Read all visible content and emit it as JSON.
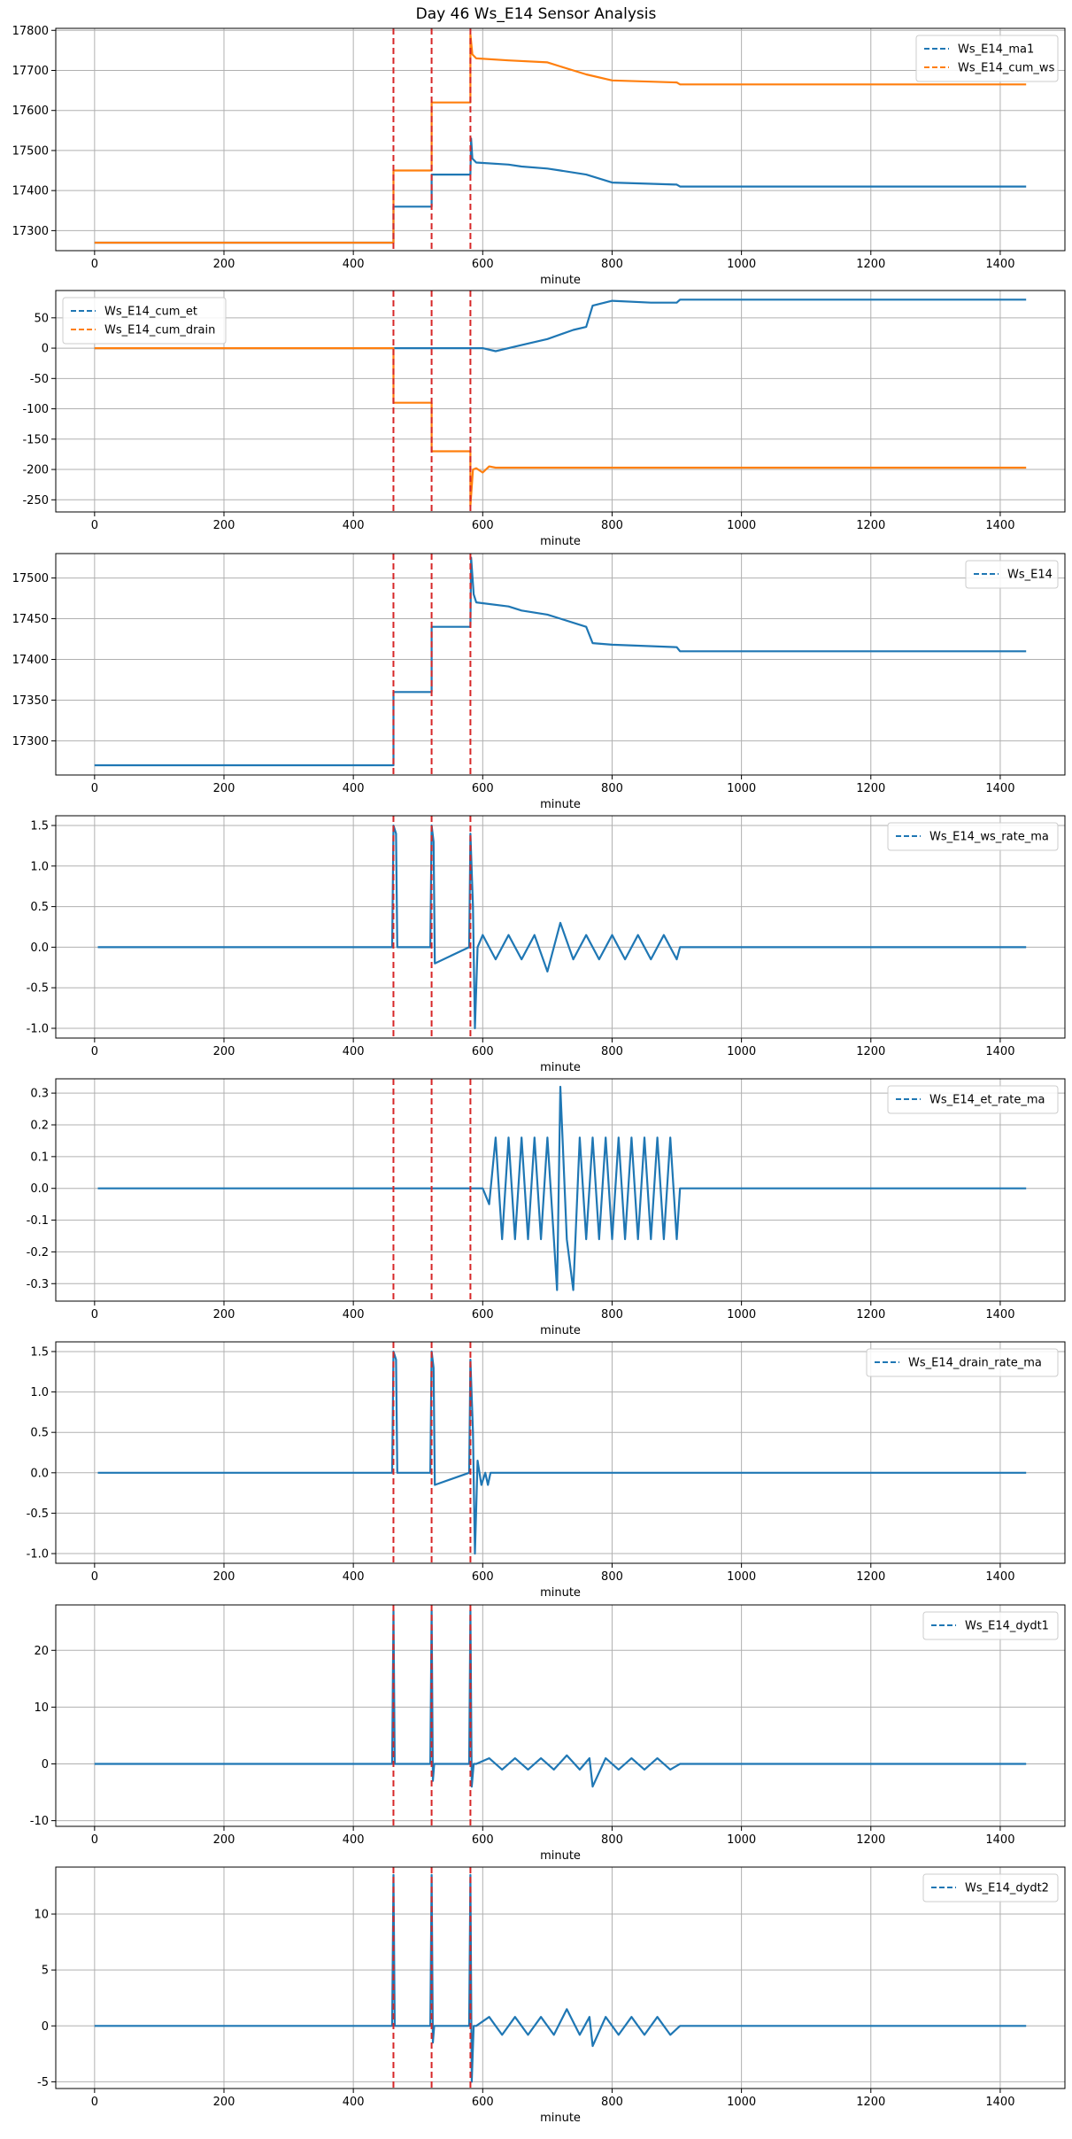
{
  "figure": {
    "title": "Day 46 Ws_E14 Sensor Analysis"
  },
  "colors": {
    "blue": "#1f77b4",
    "orange": "#ff7f0e",
    "event": "#d62728",
    "grid": "#b0b0b0"
  },
  "events": [
    462,
    521,
    581
  ],
  "chart_data": [
    {
      "type": "line",
      "xlabel": "minute",
      "xlim": [
        -60,
        1500
      ],
      "ylim": [
        17250,
        17805
      ],
      "xticks": [
        0,
        200,
        400,
        600,
        800,
        1000,
        1200,
        1400
      ],
      "yticks": [
        17300,
        17400,
        17500,
        17600,
        17700,
        17800
      ],
      "legend": "top-right",
      "grid": true,
      "series": [
        {
          "name": "Ws_E14_ma1",
          "color": "blue",
          "x": [
            0,
            462,
            462,
            521,
            521,
            581,
            582,
            584,
            590,
            640,
            660,
            700,
            720,
            760,
            800,
            900,
            905,
            1440
          ],
          "y": [
            17270,
            17270,
            17360,
            17360,
            17440,
            17440,
            17530,
            17480,
            17470,
            17465,
            17460,
            17455,
            17450,
            17440,
            17420,
            17415,
            17410,
            17410
          ]
        },
        {
          "name": "Ws_E14_cum_ws",
          "color": "orange",
          "x": [
            0,
            462,
            462,
            521,
            521,
            581,
            581,
            584,
            590,
            640,
            700,
            720,
            760,
            800,
            900,
            905,
            1440
          ],
          "y": [
            17270,
            17270,
            17450,
            17450,
            17620,
            17620,
            17790,
            17740,
            17730,
            17725,
            17720,
            17710,
            17690,
            17675,
            17670,
            17665,
            17665
          ]
        }
      ]
    },
    {
      "type": "line",
      "xlabel": "minute",
      "xlim": [
        -60,
        1500
      ],
      "ylim": [
        -270,
        95
      ],
      "xticks": [
        0,
        200,
        400,
        600,
        800,
        1000,
        1200,
        1400
      ],
      "yticks": [
        -250,
        -200,
        -150,
        -100,
        -50,
        0,
        50
      ],
      "legend": "top-left",
      "grid": true,
      "series": [
        {
          "name": "Ws_E14_cum_et",
          "color": "blue",
          "x": [
            0,
            600,
            620,
            660,
            700,
            740,
            760,
            770,
            800,
            860,
            900,
            905,
            1440
          ],
          "y": [
            0,
            0,
            -5,
            5,
            15,
            30,
            35,
            70,
            78,
            75,
            75,
            80,
            80
          ]
        },
        {
          "name": "Ws_E14_cum_drain",
          "color": "orange",
          "x": [
            0,
            462,
            462,
            521,
            521,
            581,
            581,
            585,
            590,
            600,
            610,
            620,
            1440
          ],
          "y": [
            0,
            0,
            -90,
            -90,
            -170,
            -170,
            -260,
            -200,
            -198,
            -205,
            -195,
            -197,
            -197
          ]
        }
      ]
    },
    {
      "type": "line",
      "xlabel": "minute",
      "xlim": [
        -60,
        1500
      ],
      "ylim": [
        17258,
        17530
      ],
      "xticks": [
        0,
        200,
        400,
        600,
        800,
        1000,
        1200,
        1400
      ],
      "yticks": [
        17300,
        17350,
        17400,
        17450,
        17500
      ],
      "legend": "top-right",
      "grid": true,
      "series": [
        {
          "name": "Ws_E14",
          "color": "blue",
          "x": [
            0,
            462,
            462,
            521,
            521,
            581,
            582,
            586,
            590,
            640,
            660,
            700,
            720,
            760,
            770,
            800,
            900,
            905,
            1440
          ],
          "y": [
            17270,
            17270,
            17360,
            17360,
            17440,
            17440,
            17525,
            17480,
            17470,
            17465,
            17460,
            17455,
            17450,
            17440,
            17420,
            17418,
            17415,
            17410,
            17410
          ]
        }
      ]
    },
    {
      "type": "line",
      "xlabel": "minute",
      "xlim": [
        -60,
        1500
      ],
      "ylim": [
        -1.12,
        1.62
      ],
      "xticks": [
        0,
        200,
        400,
        600,
        800,
        1000,
        1200,
        1400
      ],
      "yticks": [
        -1.0,
        -0.5,
        0.0,
        0.5,
        1.0,
        1.5
      ],
      "legend": "top-right",
      "grid": true,
      "series": [
        {
          "name": "Ws_E14_ws_rate_ma",
          "color": "blue",
          "x": [
            5,
            460,
            462,
            466,
            468,
            519,
            521,
            524,
            526,
            579,
            581,
            585,
            588,
            592,
            600,
            620,
            640,
            660,
            680,
            700,
            720,
            740,
            760,
            780,
            800,
            820,
            840,
            860,
            880,
            900,
            905,
            1440
          ],
          "y": [
            0,
            0,
            1.5,
            1.4,
            0,
            0,
            1.5,
            1.3,
            -0.2,
            0,
            1.4,
            0.5,
            -1.0,
            0,
            0.15,
            -0.15,
            0.15,
            -0.15,
            0.15,
            -0.3,
            0.3,
            -0.15,
            0.15,
            -0.15,
            0.15,
            -0.15,
            0.15,
            -0.15,
            0.15,
            -0.15,
            0,
            0
          ]
        }
      ]
    },
    {
      "type": "line",
      "xlabel": "minute",
      "xlim": [
        -60,
        1500
      ],
      "ylim": [
        -0.355,
        0.345
      ],
      "xticks": [
        0,
        200,
        400,
        600,
        800,
        1000,
        1200,
        1400
      ],
      "yticks": [
        -0.3,
        -0.2,
        -0.1,
        0.0,
        0.1,
        0.2,
        0.3
      ],
      "legend": "top-right",
      "grid": true,
      "series": [
        {
          "name": "Ws_E14_et_rate_ma",
          "color": "blue",
          "x": [
            5,
            600,
            610,
            620,
            630,
            640,
            650,
            660,
            670,
            680,
            690,
            700,
            710,
            715,
            720,
            730,
            740,
            750,
            760,
            770,
            780,
            790,
            800,
            810,
            820,
            830,
            840,
            850,
            860,
            870,
            880,
            890,
            900,
            905,
            1440
          ],
          "y": [
            0,
            0,
            -0.05,
            0.16,
            -0.16,
            0.16,
            -0.16,
            0.16,
            -0.16,
            0.16,
            -0.16,
            0.16,
            -0.16,
            -0.32,
            0.32,
            -0.16,
            -0.32,
            0.16,
            -0.16,
            0.16,
            -0.16,
            0.16,
            -0.16,
            0.16,
            -0.16,
            0.16,
            -0.16,
            0.16,
            -0.16,
            0.16,
            -0.16,
            0.16,
            -0.16,
            0,
            0
          ]
        }
      ]
    },
    {
      "type": "line",
      "xlabel": "minute",
      "xlim": [
        -60,
        1500
      ],
      "ylim": [
        -1.12,
        1.62
      ],
      "xticks": [
        0,
        200,
        400,
        600,
        800,
        1000,
        1200,
        1400
      ],
      "yticks": [
        -1.0,
        -0.5,
        0.0,
        0.5,
        1.0,
        1.5
      ],
      "legend": "top-right",
      "grid": true,
      "series": [
        {
          "name": "Ws_E14_drain_rate_ma",
          "color": "blue",
          "x": [
            5,
            460,
            462,
            466,
            468,
            519,
            521,
            524,
            526,
            579,
            581,
            585,
            588,
            592,
            598,
            604,
            608,
            612,
            1440
          ],
          "y": [
            0,
            0,
            1.5,
            1.4,
            0,
            0,
            1.5,
            1.3,
            -0.15,
            0,
            1.4,
            0.5,
            -1.0,
            0.15,
            -0.15,
            0,
            -0.15,
            0,
            0
          ]
        }
      ]
    },
    {
      "type": "line",
      "xlabel": "minute",
      "xlim": [
        -60,
        1500
      ],
      "ylim": [
        -11,
        28
      ],
      "xticks": [
        0,
        200,
        400,
        600,
        800,
        1000,
        1200,
        1400
      ],
      "yticks": [
        -10,
        0,
        10,
        20
      ],
      "legend": "top-right",
      "grid": true,
      "series": [
        {
          "name": "Ws_E14_dydt1",
          "color": "blue",
          "x": [
            0,
            460,
            462,
            464,
            466,
            519,
            521,
            523,
            525,
            579,
            581,
            583,
            586,
            590,
            610,
            630,
            650,
            670,
            690,
            710,
            730,
            750,
            765,
            770,
            790,
            810,
            830,
            850,
            870,
            890,
            905,
            1440
          ],
          "y": [
            0,
            0,
            27,
            0,
            0,
            0,
            27,
            -3,
            0,
            0,
            27,
            -4,
            0,
            0,
            1,
            -1,
            1,
            -1,
            1,
            -1,
            1.5,
            -1,
            1,
            -4,
            1,
            -1,
            1,
            -1,
            1,
            -1,
            0,
            0
          ]
        }
      ]
    },
    {
      "type": "line",
      "xlabel": "minute",
      "xlim": [
        -60,
        1500
      ],
      "ylim": [
        -5.6,
        14.2
      ],
      "xticks": [
        0,
        200,
        400,
        600,
        800,
        1000,
        1200,
        1400
      ],
      "yticks": [
        -5,
        0,
        5,
        10
      ],
      "legend": "top-right",
      "grid": true,
      "series": [
        {
          "name": "Ws_E14_dydt2",
          "color": "blue",
          "x": [
            0,
            460,
            462,
            464,
            466,
            519,
            521,
            523,
            525,
            579,
            581,
            583,
            586,
            590,
            610,
            630,
            650,
            670,
            690,
            710,
            730,
            750,
            765,
            770,
            790,
            810,
            830,
            850,
            870,
            890,
            905,
            1440
          ],
          "y": [
            0,
            0,
            13.5,
            0,
            0,
            0,
            13.5,
            -1.5,
            0,
            0,
            13.5,
            -5,
            0,
            0,
            0.8,
            -0.8,
            0.8,
            -0.8,
            0.8,
            -0.8,
            1.5,
            -0.8,
            0.8,
            -1.8,
            0.8,
            -0.8,
            0.8,
            -0.8,
            0.8,
            -0.8,
            0,
            0
          ]
        }
      ]
    }
  ]
}
